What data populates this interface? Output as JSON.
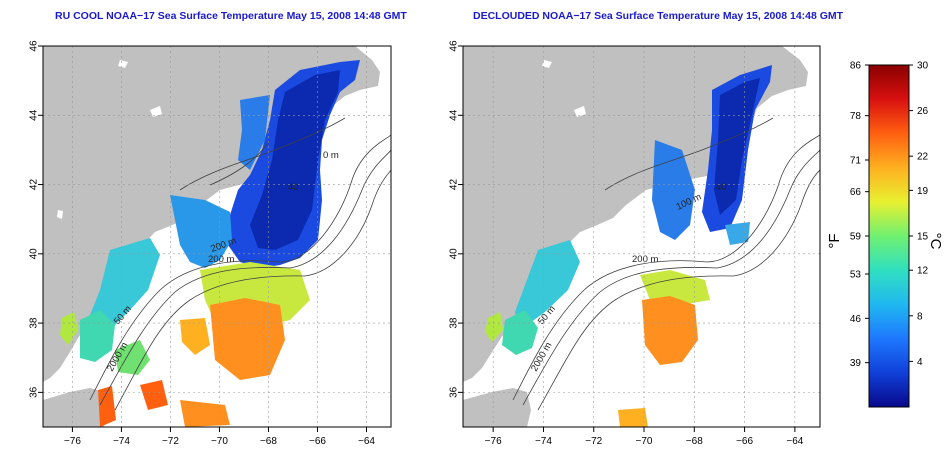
{
  "titles": {
    "left": "RU COOL NOAA−17 Sea Surface Temperature May 15, 2008 14:48 GMT",
    "right": "DECLOUDED NOAA−17 Sea Surface Temperature May 15, 2008 14:48 GMT"
  },
  "axes": {
    "lon_ticks": [
      -76,
      -74,
      -72,
      -70,
      -68,
      -66,
      -64
    ],
    "lat_ticks": [
      36,
      38,
      40,
      42,
      44,
      46
    ],
    "lon_range": [
      -77.2,
      -63.0
    ],
    "lat_range": [
      35.0,
      46.0
    ]
  },
  "contour_labels": {
    "left": [
      "200 m",
      "2000 m",
      "50 m",
      "200 m",
      "40",
      "0 m"
    ],
    "right": [
      "200 m",
      "2000 m",
      "50 m",
      "100 m",
      "40"
    ]
  },
  "colorbar": {
    "f_label": "°F",
    "c_label": "°C",
    "f_ticks": [
      "86",
      "78",
      "71",
      "66",
      "59",
      "53",
      "46",
      "39"
    ],
    "c_ticks": [
      "30",
      "26",
      "22",
      "19",
      "15",
      "12",
      "8",
      "4"
    ],
    "colors": [
      "#08088a",
      "#1040d8",
      "#1e78ff",
      "#20b8f0",
      "#30e0c0",
      "#70f070",
      "#e8f030",
      "#ffb020",
      "#ff6010",
      "#d81010",
      "#8a0000"
    ]
  },
  "colors": {
    "land": "#c0c0c0",
    "ocean": "#ffffff",
    "title": "#1a1acc",
    "contour": "#404040",
    "grid": "#999999"
  }
}
